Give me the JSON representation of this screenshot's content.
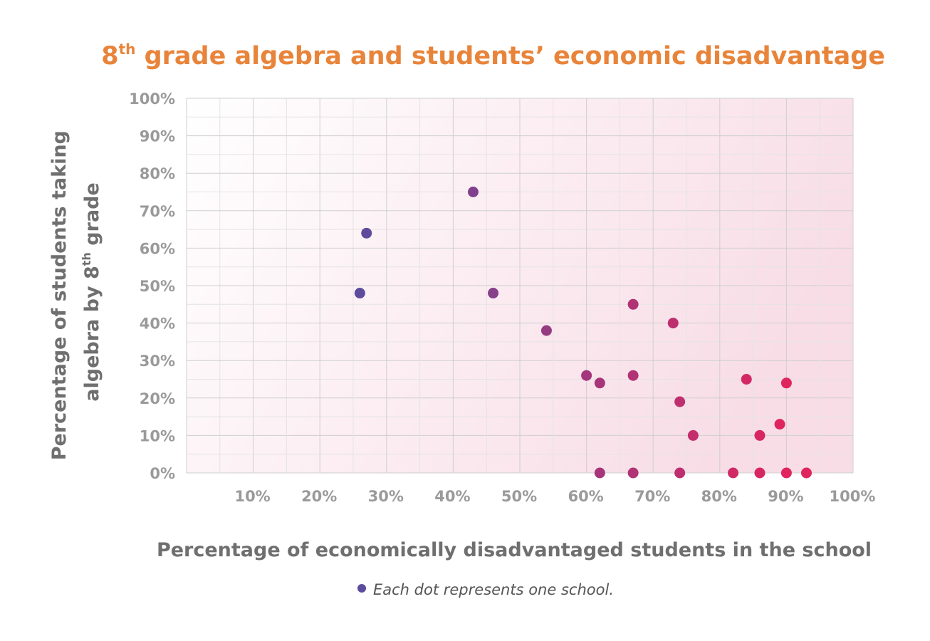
{
  "chart_data": {
    "type": "scatter",
    "title": {
      "main": "8",
      "sup": "th",
      "rest": " grade algebra and students’ economic disadvantage"
    },
    "xlabel": "Percentage of economically disadvantaged students in the school",
    "ylabel": {
      "line1": "Percentage of students taking",
      "line2_main": "algebra by 8",
      "line2_sup": "th",
      "line2_rest": " grade"
    },
    "xlim": [
      0,
      100
    ],
    "ylim": [
      0,
      100
    ],
    "x_ticks": [
      "10%",
      "20%",
      "30%",
      "40%",
      "50%",
      "60%",
      "70%",
      "80%",
      "90%",
      "100%"
    ],
    "y_ticks": [
      "0%",
      "10%",
      "20%",
      "30%",
      "40%",
      "50%",
      "60%",
      "70%",
      "80%",
      "90%",
      "100%"
    ],
    "grid": true,
    "note": "Each dot represents one school.",
    "colors": {
      "dot_low": "#5b4c9e",
      "dot_high": "#e0245e",
      "title": "#e8843a",
      "note_dot": "#5b4c9e"
    },
    "points": [
      {
        "x": 27,
        "y": 64
      },
      {
        "x": 26,
        "y": 48
      },
      {
        "x": 43,
        "y": 75
      },
      {
        "x": 46,
        "y": 48
      },
      {
        "x": 54,
        "y": 38
      },
      {
        "x": 60,
        "y": 26
      },
      {
        "x": 62,
        "y": 24
      },
      {
        "x": 62,
        "y": 0
      },
      {
        "x": 67,
        "y": 45
      },
      {
        "x": 67,
        "y": 26
      },
      {
        "x": 67,
        "y": 0
      },
      {
        "x": 73,
        "y": 40
      },
      {
        "x": 74,
        "y": 19
      },
      {
        "x": 74,
        "y": 0
      },
      {
        "x": 76,
        "y": 10
      },
      {
        "x": 82,
        "y": 0
      },
      {
        "x": 84,
        "y": 25
      },
      {
        "x": 86,
        "y": 10
      },
      {
        "x": 86,
        "y": 0
      },
      {
        "x": 89,
        "y": 13
      },
      {
        "x": 90,
        "y": 24
      },
      {
        "x": 90,
        "y": 0
      },
      {
        "x": 93,
        "y": 0
      }
    ]
  }
}
